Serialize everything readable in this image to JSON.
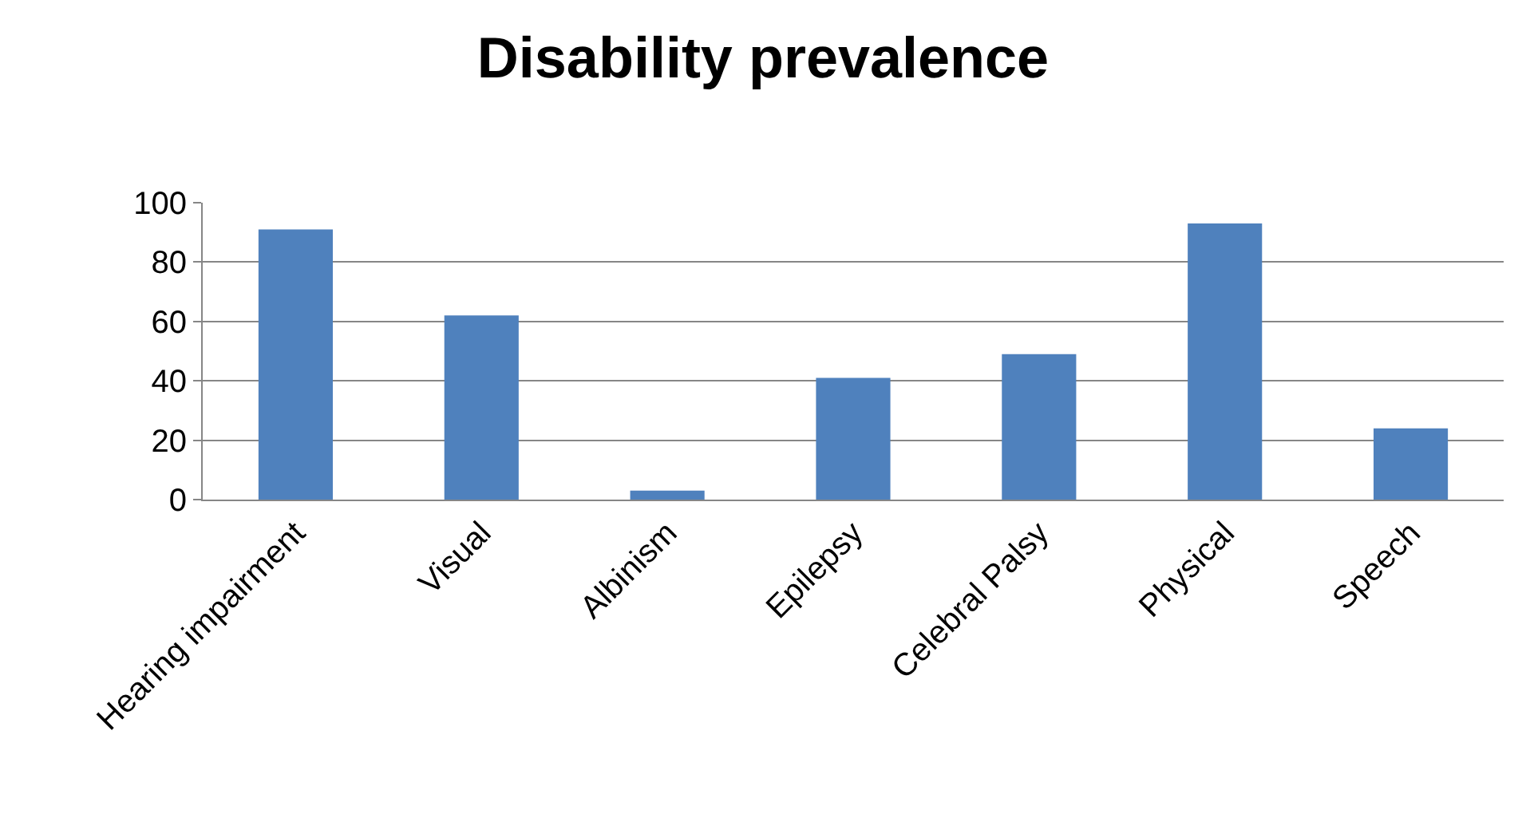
{
  "chart_data": {
    "type": "bar",
    "title": "Disability prevalence",
    "categories": [
      "Hearing impairment",
      "Visual",
      "Albinism",
      "Epilepsy",
      "Celebral Palsy",
      "Physical",
      "Speech"
    ],
    "values": [
      91,
      62,
      3,
      41,
      49,
      93,
      24
    ],
    "color": "#4f81bd",
    "ylim": [
      0,
      100
    ],
    "yticks": [
      0,
      20,
      40,
      60,
      80,
      100
    ],
    "grid": "y",
    "legend": false
  }
}
